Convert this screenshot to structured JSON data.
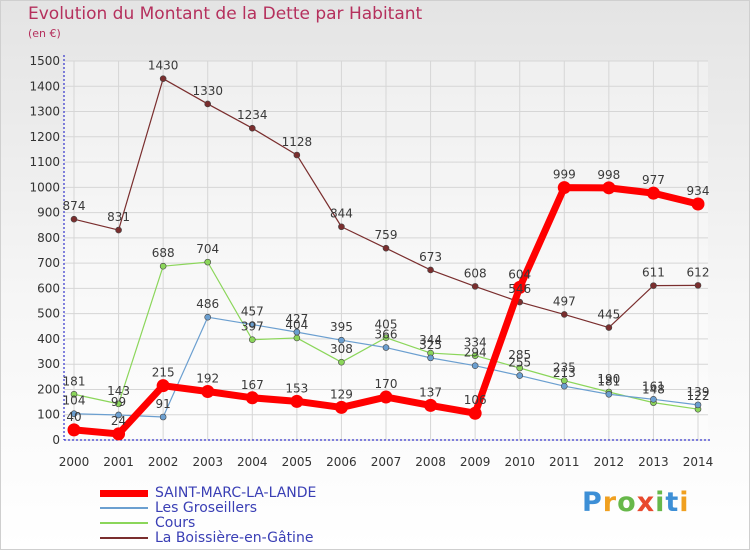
{
  "title": "Evolution du Montant de la Dette par Habitant",
  "subtitle": "(en €)",
  "logo_text": "Proxiti",
  "chart_data": {
    "type": "line",
    "title": "Evolution du Montant de la Dette par Habitant",
    "subtitle": "(en €)",
    "categories": [
      "2000",
      "2001",
      "2002",
      "2003",
      "2004",
      "2005",
      "2006",
      "2007",
      "2008",
      "2009",
      "2010",
      "2011",
      "2012",
      "2013",
      "2014"
    ],
    "ylim": [
      0,
      1500
    ],
    "yticks": [
      0,
      100,
      200,
      300,
      400,
      500,
      600,
      700,
      800,
      900,
      1000,
      1100,
      1200,
      1300,
      1400,
      1500
    ],
    "grid": true,
    "legend_position": "bottom-left",
    "series": [
      {
        "name": "La Boissière-en-Gâtine",
        "color": "#7a2e2e",
        "width": 1.2,
        "values": [
          874,
          831,
          1430,
          1330,
          1234,
          1128,
          844,
          759,
          673,
          608,
          546,
          497,
          445,
          611,
          612
        ],
        "labels": [
          "874",
          "831",
          "1430",
          "1330",
          "1234",
          "1128",
          "844",
          "759",
          "673",
          "608",
          "546",
          "497",
          "445",
          "611",
          "612"
        ]
      },
      {
        "name": "Cours",
        "color": "#8bd65a",
        "width": 1.2,
        "values": [
          181,
          143,
          688,
          704,
          397,
          404,
          308,
          405,
          344,
          334,
          285,
          235,
          190,
          148,
          122
        ],
        "labels": [
          "181",
          "143",
          "688",
          "704",
          "397",
          "404",
          "308",
          "405",
          "344",
          "334",
          "285",
          "235",
          "190",
          "148",
          "122"
        ]
      },
      {
        "name": "Les Groseillers",
        "color": "#6b9fd0",
        "width": 1.2,
        "values": [
          104,
          99,
          91,
          486,
          457,
          427,
          395,
          366,
          325,
          294,
          255,
          213,
          181,
          161,
          139
        ],
        "labels": [
          "104",
          "99",
          "91",
          "486",
          "457",
          "427",
          "395",
          "366",
          "325",
          "294",
          "255",
          "213",
          "181",
          "161",
          "139"
        ]
      },
      {
        "name": "SAINT-MARC-LA-LANDE",
        "color": "#ff0000",
        "width": 7,
        "values": [
          40,
          24,
          215,
          192,
          167,
          153,
          129,
          170,
          137,
          106,
          604,
          999,
          998,
          977,
          934
        ],
        "labels": [
          "40",
          "24",
          "215",
          "192",
          "167",
          "153",
          "129",
          "170",
          "137",
          "106",
          "604",
          "999",
          "998",
          "977",
          "934"
        ]
      }
    ],
    "legend": [
      {
        "name": "SAINT-MARC-LA-LANDE",
        "color": "#ff0000",
        "thickness": 7
      },
      {
        "name": "Les Groseillers",
        "color": "#6b9fd0",
        "thickness": 2
      },
      {
        "name": "Cours",
        "color": "#8bd65a",
        "thickness": 2
      },
      {
        "name": "La Boissière-en-Gâtine",
        "color": "#7a2e2e",
        "thickness": 2
      }
    ]
  }
}
